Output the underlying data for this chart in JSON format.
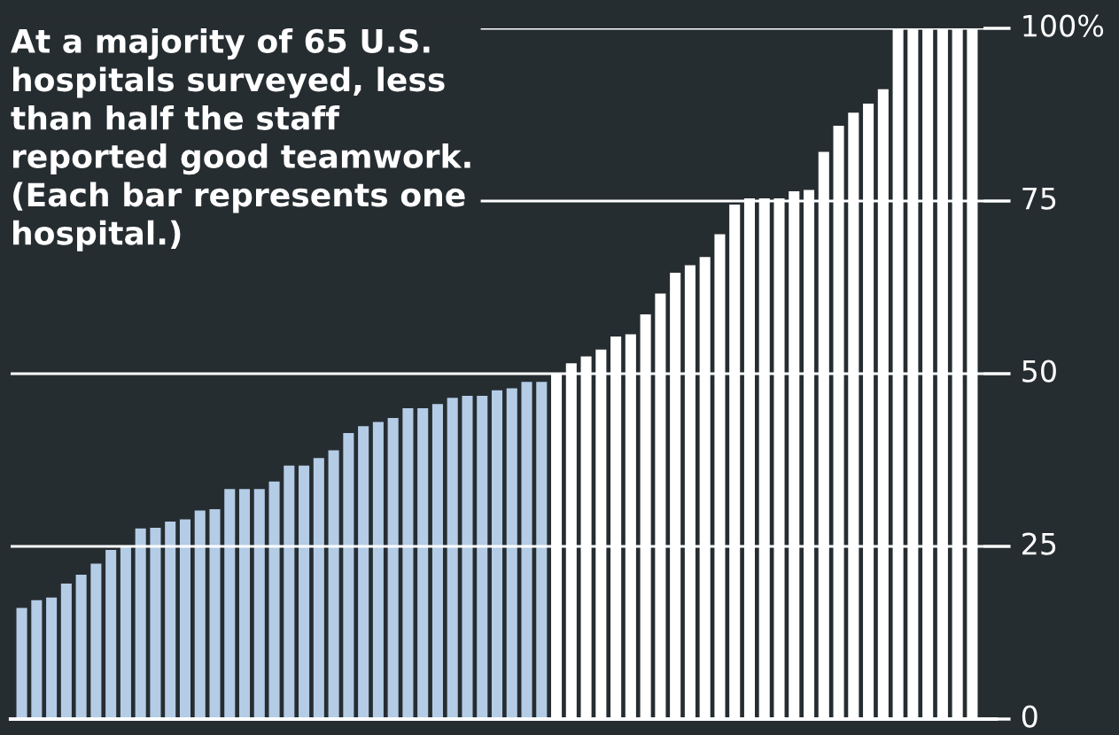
{
  "chart_data": {
    "type": "bar",
    "title": "At a majority of 65 U.S.\nhospitals surveyed, less\nthan half the staff\nreported good teamwork.\n(Each bar represents one\nhospital.)",
    "categories": [
      null,
      null,
      null,
      null,
      null,
      null,
      null,
      null,
      null,
      null,
      null,
      null,
      null,
      null,
      null,
      null,
      null,
      null,
      null,
      null,
      null,
      null,
      null,
      null,
      null,
      null,
      null,
      null,
      null,
      null,
      null,
      null,
      null,
      null,
      null,
      null,
      null,
      null,
      null,
      null,
      null,
      null,
      null,
      null,
      null,
      null,
      null,
      null,
      null,
      null,
      null,
      null,
      null,
      null,
      null,
      null,
      null,
      null,
      null,
      null,
      null,
      null,
      null,
      null,
      null
    ],
    "values": [
      16.1,
      17.2,
      17.6,
      19.6,
      20.9,
      22.5,
      24.5,
      25.0,
      27.6,
      27.7,
      28.6,
      28.9,
      30.2,
      30.4,
      33.3,
      33.3,
      33.3,
      34.4,
      36.7,
      36.7,
      37.8,
      38.9,
      41.4,
      42.4,
      43.0,
      43.6,
      45.0,
      45.0,
      45.6,
      46.5,
      46.8,
      46.8,
      47.6,
      47.9,
      48.8,
      48.8,
      50.0,
      51.5,
      52.5,
      53.5,
      55.4,
      55.7,
      58.6,
      61.6,
      64.6,
      65.7,
      66.9,
      70.2,
      74.5,
      75.4,
      75.4,
      75.4,
      76.4,
      76.6,
      82.1,
      85.9,
      87.8,
      89.1,
      91.2,
      100,
      100,
      100,
      100,
      100,
      100
    ],
    "colors": [
      "#b4cce6",
      "#b4cce6",
      "#b4cce6",
      "#b4cce6",
      "#b4cce6",
      "#b4cce6",
      "#b4cce6",
      "#b4cce6",
      "#b4cce6",
      "#b4cce6",
      "#b4cce6",
      "#b4cce6",
      "#b4cce6",
      "#b4cce6",
      "#b4cce6",
      "#b4cce6",
      "#b4cce6",
      "#b4cce6",
      "#b4cce6",
      "#b4cce6",
      "#b4cce6",
      "#b4cce6",
      "#b4cce6",
      "#b4cce6",
      "#b4cce6",
      "#b4cce6",
      "#b4cce6",
      "#b4cce6",
      "#b4cce6",
      "#b4cce6",
      "#b4cce6",
      "#b4cce6",
      "#b4cce6",
      "#b4cce6",
      "#b4cce6",
      "#b4cce6",
      "#ffffff",
      "#ffffff",
      "#ffffff",
      "#ffffff",
      "#ffffff",
      "#ffffff",
      "#ffffff",
      "#ffffff",
      "#ffffff",
      "#ffffff",
      "#ffffff",
      "#ffffff",
      "#ffffff",
      "#ffffff",
      "#ffffff",
      "#ffffff",
      "#ffffff",
      "#ffffff",
      "#ffffff",
      "#ffffff",
      "#ffffff",
      "#ffffff",
      "#ffffff",
      "#ffffff",
      "#ffffff",
      "#ffffff",
      "#ffffff",
      "#ffffff",
      "#ffffff"
    ],
    "ylim": [
      0,
      100
    ],
    "yticks": [
      0,
      25,
      50,
      75,
      {
        "value": 100,
        "label": "100%"
      }
    ],
    "grid": "y"
  }
}
